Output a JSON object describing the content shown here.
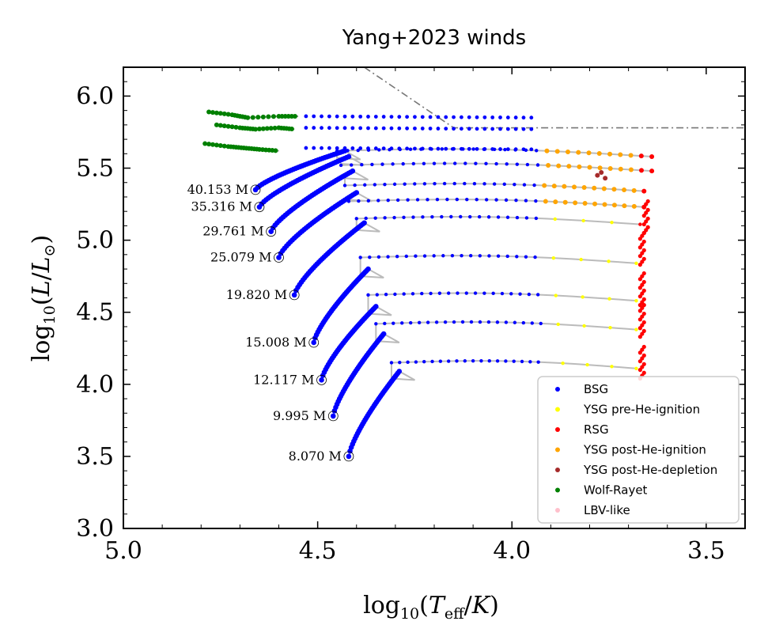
{
  "chart_data": {
    "type": "scatter",
    "title": "Yang+2023 winds",
    "xlabel": "log10(Teff/K)",
    "ylabel": "log10(L/L⊙)",
    "xlim": [
      5.0,
      3.4
    ],
    "ylim": [
      3.0,
      6.2
    ],
    "xticks": [
      5.0,
      4.5,
      4.0,
      3.5
    ],
    "xtick_labels": [
      "5.0",
      "4.5",
      "4.0",
      "3.5"
    ],
    "yticks": [
      3.0,
      3.5,
      4.0,
      4.5,
      5.0,
      5.5,
      6.0
    ],
    "ytick_labels": [
      "3.0",
      "3.5",
      "4.0",
      "4.5",
      "5.0",
      "5.5",
      "6.0"
    ],
    "legend_position": "bottom-right",
    "categories": [
      {
        "key": "bsg",
        "label": "BSG",
        "color": "#0000ff"
      },
      {
        "key": "ysg_pre",
        "label": "YSG pre-He-ignition",
        "color": "#ffff00"
      },
      {
        "key": "rsg",
        "label": "RSG",
        "color": "#ff0000"
      },
      {
        "key": "ysg_post_ign",
        "label": "YSG post-He-ignition",
        "color": "#ffa500"
      },
      {
        "key": "ysg_post_dep",
        "label": "YSG post-He-depletion",
        "color": "#a52a2a"
      },
      {
        "key": "wr",
        "label": "Wolf-Rayet",
        "color": "#008000"
      },
      {
        "key": "lbv",
        "label": "LBV-like",
        "color": "#ffc0cb"
      }
    ],
    "tracks": [
      {
        "mass_label": "8.070",
        "zams": [
          4.42,
          3.5
        ],
        "tams": [
          4.29,
          4.09
        ],
        "plateau": 4.15,
        "cool_end": [
          3.68,
          4.04
        ]
      },
      {
        "mass_label": "9.995",
        "zams": [
          4.46,
          3.78
        ],
        "tams": [
          4.33,
          4.35
        ],
        "plateau": 4.42,
        "cool_end": [
          3.68,
          4.33
        ]
      },
      {
        "mass_label": "12.117",
        "zams": [
          4.49,
          4.03
        ],
        "tams": [
          4.35,
          4.54
        ],
        "plateau": 4.62,
        "cool_end": [
          3.68,
          4.55
        ]
      },
      {
        "mass_label": "15.008",
        "zams": [
          4.51,
          4.29
        ],
        "tams": [
          4.37,
          4.8
        ],
        "plateau": 4.88,
        "cool_end": [
          3.68,
          4.83
        ]
      },
      {
        "mass_label": "19.820",
        "zams": [
          4.56,
          4.62
        ],
        "tams": [
          4.38,
          5.12
        ],
        "plateau": 5.15,
        "cool_end": [
          3.67,
          5.05
        ]
      },
      {
        "mass_label": "25.079",
        "zams": [
          4.6,
          4.88
        ],
        "tams": [
          4.4,
          5.33
        ],
        "plateau": 5.27,
        "cool_end": [
          3.66,
          5.25
        ]
      },
      {
        "mass_label": "29.761",
        "zams": [
          4.62,
          5.06
        ],
        "tams": [
          4.41,
          5.48
        ],
        "plateau": 5.38,
        "cool_end": [
          3.66,
          5.4
        ]
      },
      {
        "mass_label": "35.316",
        "zams": [
          4.65,
          5.23
        ],
        "tams": [
          4.42,
          5.58
        ],
        "plateau": 5.52,
        "cool_end": [
          3.64,
          5.52
        ]
      },
      {
        "mass_label": "40.153",
        "zams": [
          4.66,
          5.35
        ],
        "tams": [
          4.43,
          5.62
        ],
        "plateau": 5.62,
        "cool_end": [
          3.64,
          5.62
        ]
      }
    ],
    "wr_branches": [
      {
        "x": [
          4.78,
          4.72,
          4.68,
          4.6,
          4.55
        ],
        "y": [
          5.89,
          5.87,
          5.85,
          5.86,
          5.86
        ]
      },
      {
        "x": [
          4.76,
          4.7,
          4.66,
          4.6,
          4.56
        ],
        "y": [
          5.8,
          5.78,
          5.77,
          5.78,
          5.77
        ]
      },
      {
        "x": [
          4.79,
          4.73,
          4.69,
          4.65,
          4.6
        ],
        "y": [
          5.67,
          5.65,
          5.64,
          5.63,
          5.62
        ]
      }
    ],
    "hd_limit": {
      "x": [
        4.38,
        4.15,
        3.4
      ],
      "y": [
        6.2,
        5.78,
        5.78
      ]
    },
    "track_label_suffix": "M"
  }
}
